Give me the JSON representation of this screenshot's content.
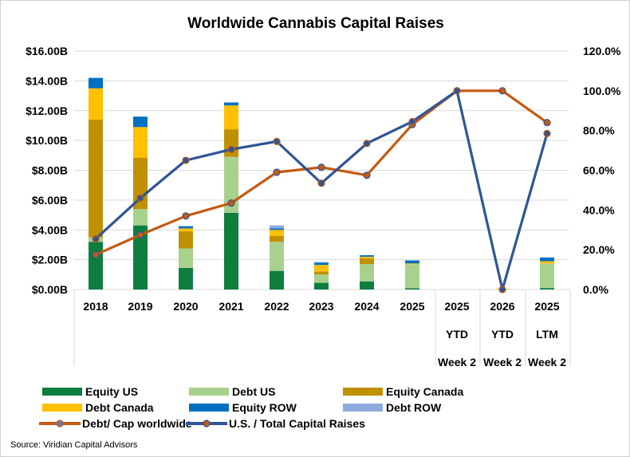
{
  "chart_data": {
    "type": "bar",
    "stacked": true,
    "title": "Worldwide Cannabis Capital Raises",
    "categories": [
      [
        "2018"
      ],
      [
        "2019"
      ],
      [
        "2020"
      ],
      [
        "2021"
      ],
      [
        "2022"
      ],
      [
        "2023"
      ],
      [
        "2024"
      ],
      [
        "2025"
      ],
      [
        "2025",
        "YTD",
        "Week 2"
      ],
      [
        "2026",
        "YTD",
        "Week 2"
      ],
      [
        "2025",
        "LTM",
        "Week 2"
      ]
    ],
    "y_left": {
      "ylim": [
        0,
        16
      ],
      "ticks": [
        "$0.00B",
        "$2.00B",
        "$4.00B",
        "$6.00B",
        "$8.00B",
        "$10.00B",
        "$12.00B",
        "$14.00B",
        "$16.00B"
      ],
      "unit": "$B"
    },
    "y_right": {
      "ylim": [
        0,
        120
      ],
      "ticks": [
        "0.0%",
        "20.0%",
        "40.0%",
        "60.0%",
        "80.0%",
        "100.0%",
        "120.0%"
      ],
      "unit": "%"
    },
    "grid": true,
    "series": [
      {
        "name": "Equity US",
        "axis": "left",
        "kind": "bar",
        "color": "#0e7e3f",
        "values": [
          3.2,
          4.3,
          1.45,
          5.15,
          1.25,
          0.45,
          0.55,
          0.08,
          0,
          0,
          0.1
        ]
      },
      {
        "name": "Debt US",
        "axis": "left",
        "kind": "bar",
        "color": "#a9d18e",
        "values": [
          0.3,
          1.1,
          1.3,
          3.75,
          1.95,
          0.55,
          1.15,
          1.62,
          0,
          0,
          1.65
        ]
      },
      {
        "name": "Equity Canada",
        "axis": "left",
        "kind": "bar",
        "color": "#bf9000",
        "values": [
          7.9,
          3.45,
          1.15,
          1.85,
          0.4,
          0.2,
          0.4,
          0,
          0,
          0,
          0
        ]
      },
      {
        "name": "Debt Canada",
        "axis": "left",
        "kind": "bar",
        "color": "#ffc000",
        "values": [
          2.1,
          2.05,
          0.2,
          1.6,
          0.4,
          0.45,
          0.1,
          0.05,
          0,
          0.05,
          0.15
        ]
      },
      {
        "name": "Equity ROW",
        "axis": "left",
        "kind": "bar",
        "color": "#0070c0",
        "values": [
          0.7,
          0.7,
          0.15,
          0.2,
          0.1,
          0.15,
          0.1,
          0.2,
          0,
          0,
          0.25
        ]
      },
      {
        "name": "Debt ROW",
        "axis": "left",
        "kind": "bar",
        "color": "#8faadc",
        "values": [
          0,
          0,
          0,
          0,
          0.2,
          0.05,
          0,
          0,
          0,
          0,
          0
        ]
      },
      {
        "name": "Debt/ Cap worldwide",
        "axis": "right",
        "kind": "line",
        "color": "#c55a11",
        "marker_color": "#c55a11",
        "values": [
          17.5,
          27.5,
          37,
          43.5,
          59,
          61.5,
          57.5,
          83,
          100,
          100,
          84
        ]
      },
      {
        "name": "U.S. / Total Capital Raises",
        "axis": "right",
        "kind": "line",
        "color": "#2f5597",
        "marker_color": "#2f5597",
        "values": [
          25.5,
          46,
          65,
          70.5,
          74.5,
          53.5,
          73.5,
          84.5,
          100,
          0,
          78.5
        ]
      }
    ],
    "legend_position": "bottom",
    "source": "Source: Viridian Capital Advisors"
  },
  "legend": [
    {
      "label": "Equity US",
      "color": "#0e7e3f",
      "kind": "bar"
    },
    {
      "label": "Debt US",
      "color": "#a9d18e",
      "kind": "bar"
    },
    {
      "label": "Equity Canada",
      "color": "#bf9000",
      "kind": "bar"
    },
    {
      "label": "Debt Canada",
      "color": "#ffc000",
      "kind": "bar"
    },
    {
      "label": "Equity ROW",
      "color": "#0070c0",
      "kind": "bar"
    },
    {
      "label": "Debt ROW",
      "color": "#8faadc",
      "kind": "bar"
    },
    {
      "label": "Debt/ Cap worldwide",
      "color": "#c55a11",
      "kind": "line"
    },
    {
      "label": "U.S. / Total Capital Raises",
      "color": "#2f5597",
      "kind": "line"
    }
  ]
}
